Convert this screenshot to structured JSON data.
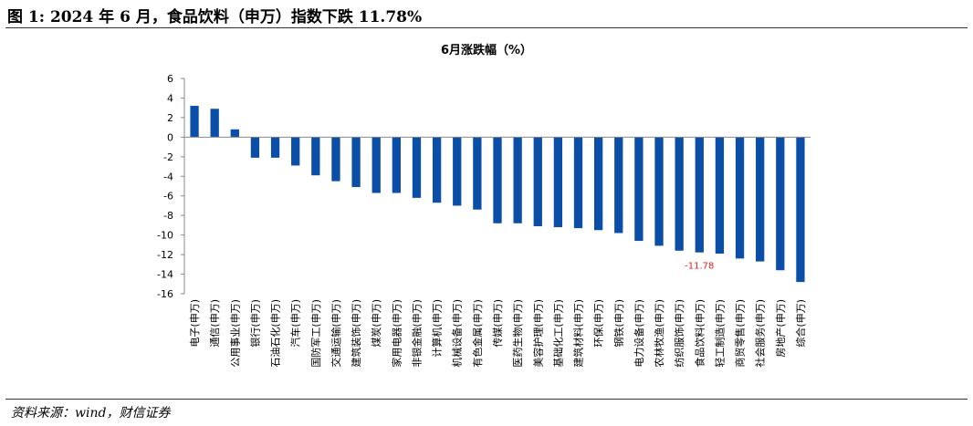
{
  "figure": {
    "title": "图 1:  2024 年 6 月，食品饮料（申万）指数下跌 11.78%",
    "source": "资料来源：wind，财信证券"
  },
  "chart_data": {
    "type": "bar",
    "title": "6月涨跌幅（%）",
    "xlabel": "",
    "ylabel": "",
    "ylim": [
      -16,
      6
    ],
    "yticks": [
      6,
      4,
      2,
      0,
      -2,
      -4,
      -6,
      -8,
      -10,
      -12,
      -14,
      -16
    ],
    "grid": false,
    "legend": "none",
    "bar_color": "#0a4ea8",
    "annotation_color": "#e0201b",
    "categories": [
      "电子(申万)",
      "通信(申万)",
      "公用事业(申万)",
      "银行(申万)",
      "石油石化(申万)",
      "汽车(申万)",
      "国防军工(申万)",
      "交通运输(申万)",
      "建筑装饰(申万)",
      "煤炭(申万)",
      "家用电器(申万)",
      "非银金融(申万)",
      "计算机(申万)",
      "机械设备(申万)",
      "有色金属(申万)",
      "传媒(申万)",
      "医药生物(申万)",
      "美容护理(申万)",
      "基础化工(申万)",
      "建筑材料(申万)",
      "环保(申万)",
      "钢铁(申万)",
      "电力设备(申万)",
      "农林牧渔(申万)",
      "纺织服饰(申万)",
      "食品饮料(申万)",
      "轻工制造(申万)",
      "商贸零售(申万)",
      "社会服务(申万)",
      "房地产(申万)",
      "综合(申万)"
    ],
    "values": [
      3.2,
      2.9,
      0.8,
      -2.1,
      -2.1,
      -2.9,
      -3.9,
      -4.5,
      -5.1,
      -5.7,
      -5.7,
      -6.2,
      -6.7,
      -7.0,
      -7.4,
      -8.8,
      -8.8,
      -9.1,
      -9.2,
      -9.3,
      -9.5,
      -9.8,
      -10.6,
      -11.1,
      -11.6,
      -11.78,
      -11.9,
      -12.4,
      -12.7,
      -13.6,
      -14.8
    ],
    "annotations": [
      {
        "category": "食品饮料(申万)",
        "label": "-11.78"
      }
    ]
  }
}
